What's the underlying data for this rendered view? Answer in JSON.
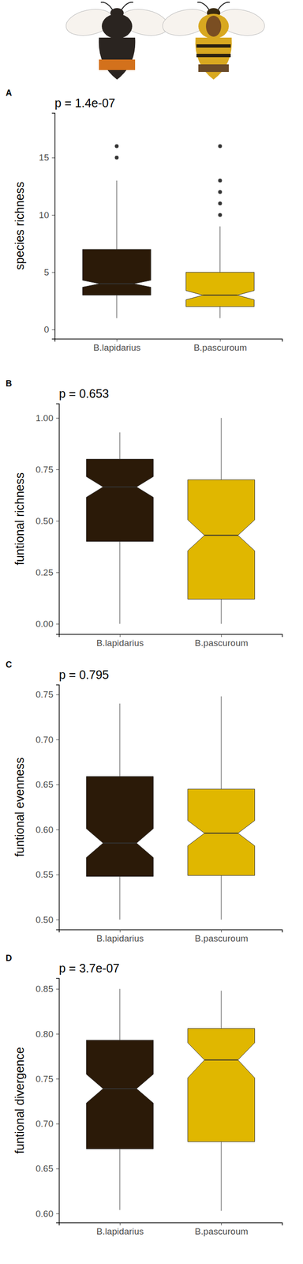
{
  "chart_data": [
    {
      "type": "box",
      "label": "A",
      "title": "p = 1.4e-07",
      "y_label": "species richness",
      "categories": [
        "B.lapidarius",
        "B.pascuroum"
      ],
      "colors": [
        "#2b1a08",
        "#e0b700"
      ],
      "ylim": [
        -0.8,
        18.9
      ],
      "yticks": [
        0,
        5,
        10,
        15
      ],
      "boxes": [
        {
          "whisker_low": 1,
          "q1": 3,
          "median": 4,
          "q3": 7,
          "whisker_high": 13,
          "notch_low": 3.7,
          "notch_high": 4.3,
          "outliers": [
            15,
            16
          ]
        },
        {
          "whisker_low": 1,
          "q1": 2,
          "median": 3,
          "q3": 5,
          "whisker_high": 9,
          "notch_low": 2.6,
          "notch_high": 3.4,
          "outliers": [
            10,
            11,
            12,
            13,
            16
          ]
        }
      ]
    },
    {
      "type": "box",
      "label": "B",
      "title": "p = 0.653",
      "y_label": "funtional richness",
      "categories": [
        "B.lapidarius",
        "B.pascuroum"
      ],
      "colors": [
        "#2b1a08",
        "#e0b700"
      ],
      "ylim": [
        -0.05,
        1.07
      ],
      "yticks": [
        {
          "value": 0,
          "label": "0.00"
        },
        0.25,
        {
          "value": 0.5,
          "label": "0.50"
        },
        0.75,
        {
          "value": 1,
          "label": "1.00"
        }
      ],
      "boxes": [
        {
          "whisker_low": 0,
          "q1": 0.4,
          "median": 0.665,
          "q3": 0.8,
          "whisker_high": 0.93,
          "notch_low": 0.615,
          "notch_high": 0.715,
          "outliers": []
        },
        {
          "whisker_low": 0,
          "q1": 0.12,
          "median": 0.43,
          "q3": 0.7,
          "whisker_high": 1.0,
          "notch_low": 0.355,
          "notch_high": 0.505,
          "outliers": []
        }
      ]
    },
    {
      "type": "box",
      "label": "C",
      "title": "p = 0.795",
      "y_label": "funtional evenness",
      "categories": [
        "B.lapidarius",
        "B.pascuroum"
      ],
      "colors": [
        "#2b1a08",
        "#e0b700"
      ],
      "ylim": [
        0.489,
        0.761
      ],
      "yticks": [
        {
          "value": 0.5,
          "label": "0.50"
        },
        0.55,
        {
          "value": 0.6,
          "label": "0.60"
        },
        0.65,
        {
          "value": 0.7,
          "label": "0.70"
        },
        0.75
      ],
      "boxes": [
        {
          "whisker_low": 0.5,
          "q1": 0.548,
          "median": 0.585,
          "q3": 0.659,
          "whisker_high": 0.74,
          "notch_low": 0.569,
          "notch_high": 0.601,
          "outliers": []
        },
        {
          "whisker_low": 0.5,
          "q1": 0.549,
          "median": 0.596,
          "q3": 0.645,
          "whisker_high": 0.748,
          "notch_low": 0.582,
          "notch_high": 0.61,
          "outliers": []
        }
      ]
    },
    {
      "type": "box",
      "label": "D",
      "title": "p = 3.7e-07",
      "y_label": "funtional divergence",
      "categories": [
        "B.lapidarius",
        "B.pascuroum"
      ],
      "colors": [
        "#2b1a08",
        "#e0b700"
      ],
      "ylim": [
        0.59,
        0.862
      ],
      "yticks": [
        {
          "value": 0.6,
          "label": "0.60"
        },
        0.65,
        {
          "value": 0.7,
          "label": "0.70"
        },
        0.75,
        {
          "value": 0.8,
          "label": "0.80"
        },
        0.85
      ],
      "boxes": [
        {
          "whisker_low": 0.604,
          "q1": 0.672,
          "median": 0.739,
          "q3": 0.793,
          "whisker_high": 0.85,
          "notch_low": 0.723,
          "notch_high": 0.755,
          "outliers": []
        },
        {
          "whisker_low": 0.603,
          "q1": 0.68,
          "median": 0.771,
          "q3": 0.806,
          "whisker_high": 0.848,
          "notch_low": 0.751,
          "notch_high": 0.79,
          "outliers": []
        }
      ]
    }
  ]
}
